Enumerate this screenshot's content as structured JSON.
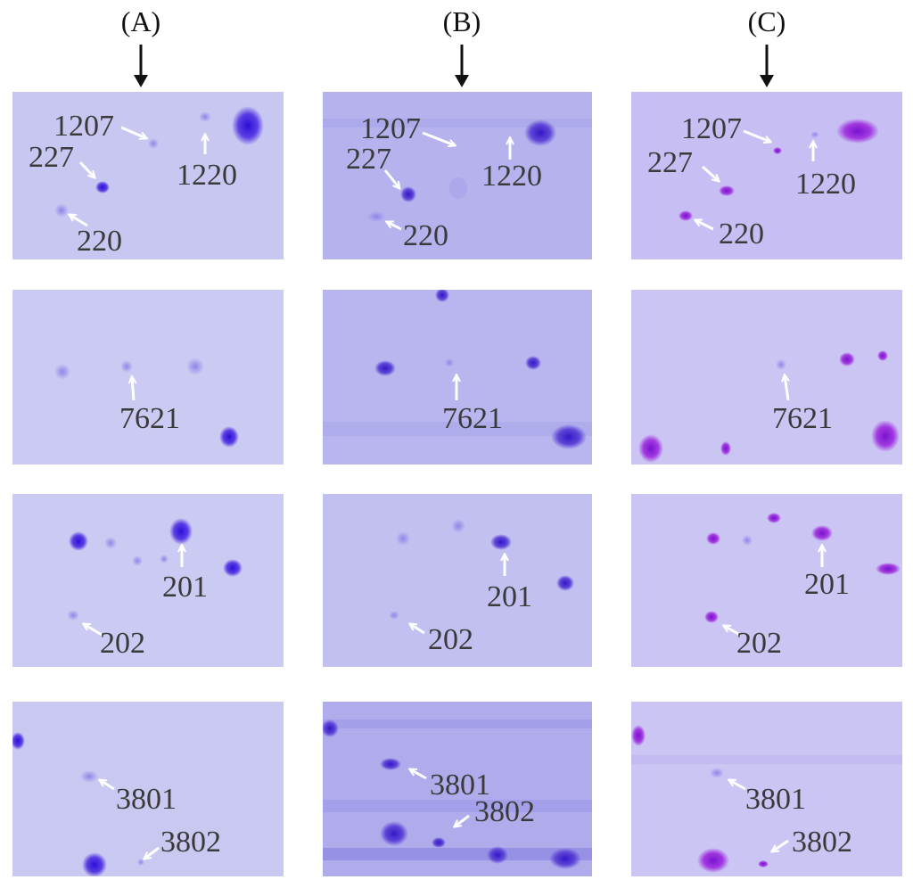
{
  "columns": [
    {
      "label": "(A)"
    },
    {
      "label": "(B)"
    },
    {
      "label": "(C)"
    }
  ],
  "rows": [
    {
      "labels": [
        "1207",
        "227",
        "1220",
        "220"
      ]
    },
    {
      "labels": [
        "7621"
      ]
    },
    {
      "labels": [
        "201",
        "202"
      ]
    },
    {
      "labels": [
        "3801",
        "3802"
      ]
    }
  ],
  "colors": {
    "gel_a": "#c8c7f1",
    "gel_b": "#b5b2ee",
    "gel_c": "#c7bff3",
    "spot_a": "#4a2ae0",
    "spot_b": "#5a3ad8",
    "spot_c": "#9a2ee0",
    "arrow_black": "#111111",
    "arrow_white": "#ffffff",
    "label_gray": "#3a3a3a"
  }
}
